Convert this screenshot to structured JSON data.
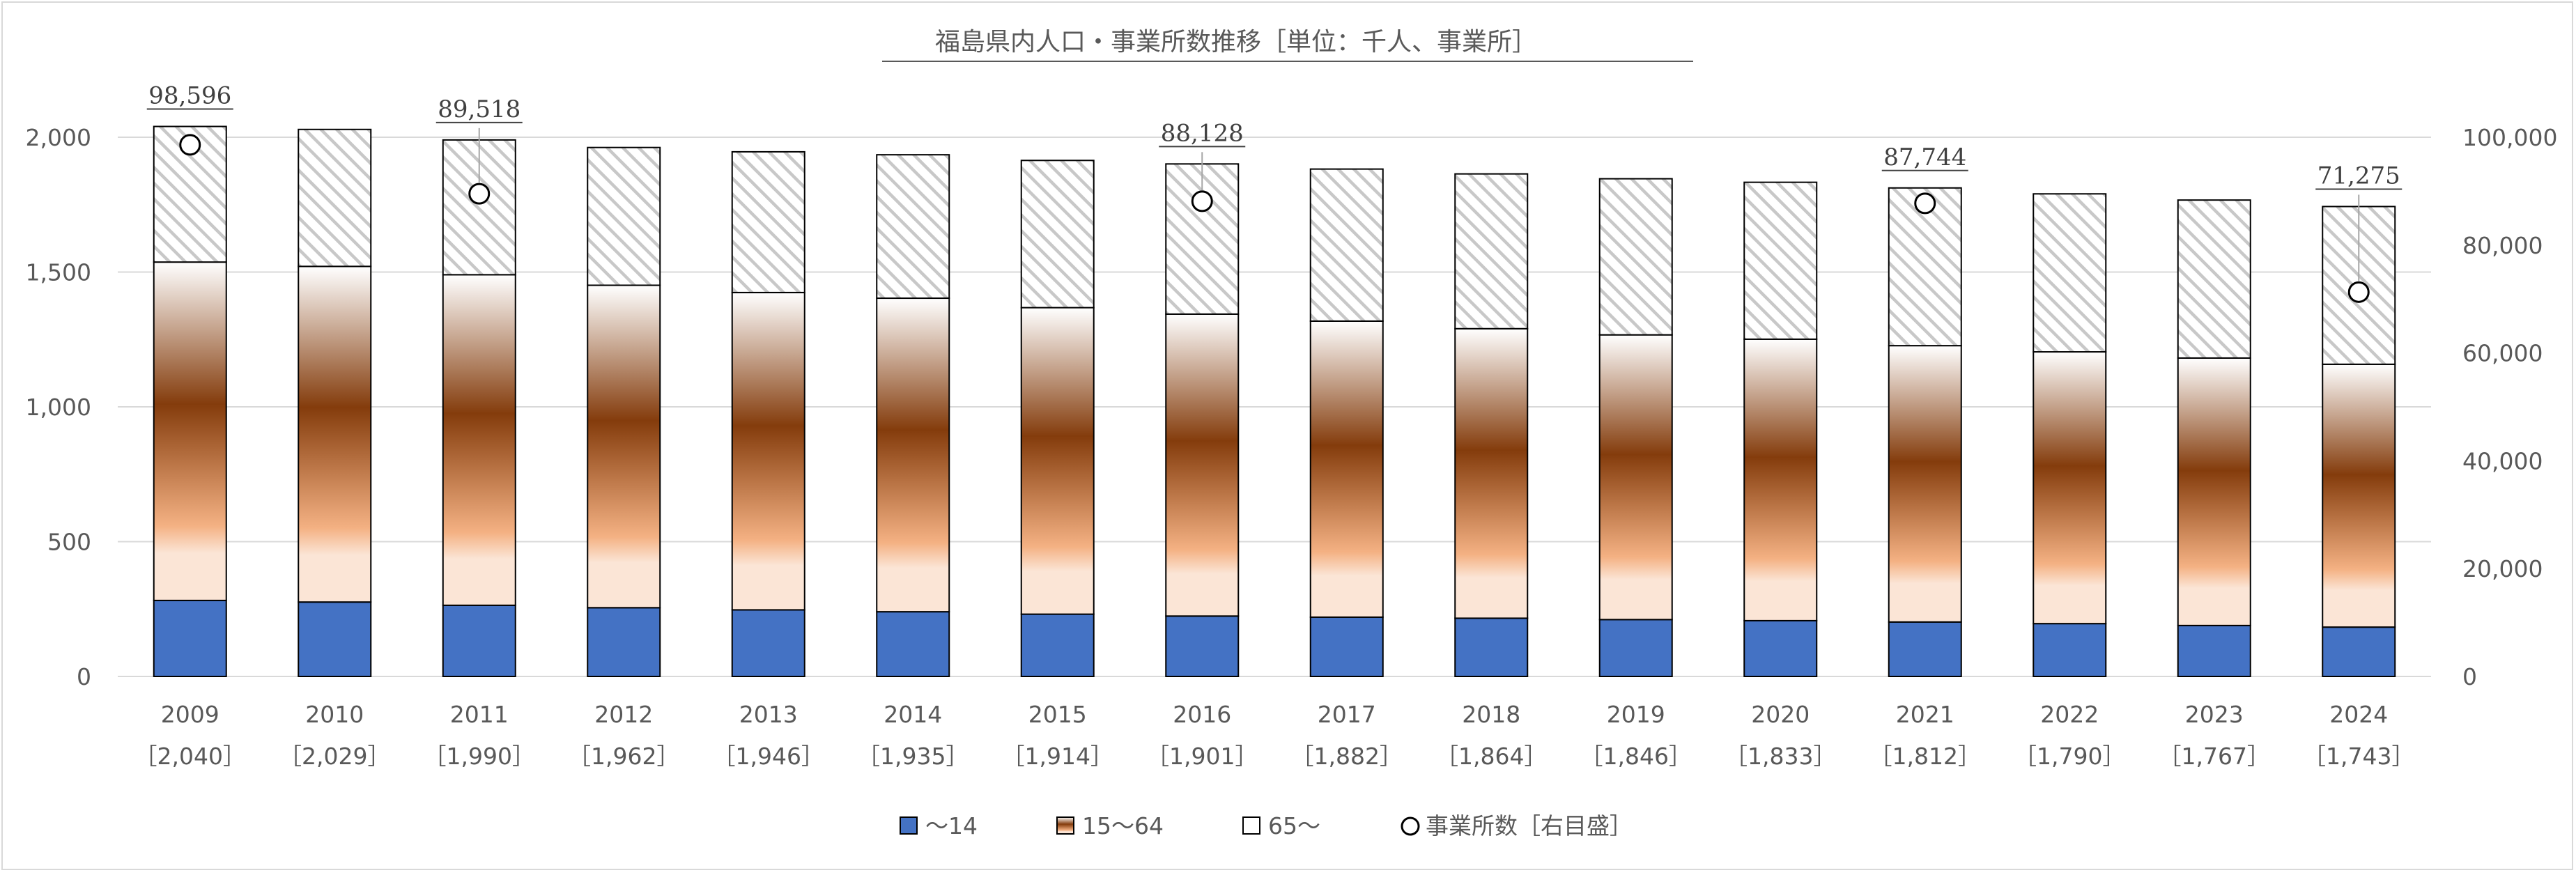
{
  "chart_data": {
    "type": "bar",
    "title": "福島県内人口・事業所数推移［単位：千人、事業所］",
    "categories": [
      "2009",
      "2010",
      "2011",
      "2012",
      "2013",
      "2014",
      "2015",
      "2016",
      "2017",
      "2018",
      "2019",
      "2020",
      "2021",
      "2022",
      "2023",
      "2024"
    ],
    "category_totals": [
      "［2,040］",
      "［2,029］",
      "［1,990］",
      "［1,962］",
      "［1,946］",
      "［1,935］",
      "［1,914］",
      "［1,901］",
      "［1,882］",
      "［1,864］",
      "［1,846］",
      "［1,833］",
      "［1,812］",
      "［1,790］",
      "［1,767］",
      "［1,743］"
    ],
    "totals": [
      2040,
      2029,
      1990,
      1962,
      1946,
      1935,
      1914,
      1901,
      1882,
      1864,
      1846,
      1833,
      1812,
      1790,
      1767,
      1743
    ],
    "series": [
      {
        "name": "～14",
        "values": [
          282,
          276,
          264,
          255,
          247,
          240,
          231,
          224,
          220,
          216,
          211,
          207,
          202,
          196,
          189,
          183
        ],
        "color": "#4472c4"
      },
      {
        "name": "15～64",
        "values": [
          1255,
          1245,
          1226,
          1196,
          1177,
          1163,
          1137,
          1120,
          1098,
          1074,
          1056,
          1044,
          1025,
          1008,
          992,
          975
        ],
        "color": "#843c0c"
      },
      {
        "name": "65～",
        "values": [
          503,
          508,
          500,
          511,
          522,
          532,
          546,
          557,
          564,
          574,
          579,
          582,
          585,
          586,
          586,
          585
        ],
        "color": "#ffffff"
      }
    ],
    "secondary_series": {
      "name": "事業所数［右目盛］",
      "values": [
        98596,
        null,
        89518,
        null,
        null,
        null,
        null,
        88128,
        null,
        null,
        null,
        null,
        87744,
        null,
        null,
        71275
      ],
      "labels": [
        "98,596",
        null,
        "89,518",
        null,
        null,
        null,
        null,
        "88,128",
        null,
        null,
        null,
        null,
        "87,744",
        null,
        null,
        "71,275"
      ]
    },
    "ylim": [
      0,
      2000
    ],
    "y_ticks": [
      "0",
      "500",
      "1,000",
      "1,500",
      "2,000"
    ],
    "y2lim": [
      0,
      100000
    ],
    "y2_ticks": [
      "0",
      "20,000",
      "40,000",
      "60,000",
      "80,000",
      "100,000"
    ],
    "legend_position": "bottom",
    "legend": [
      "～14",
      "15～64",
      "65～",
      "事業所数［右目盛］"
    ],
    "grid": true
  }
}
